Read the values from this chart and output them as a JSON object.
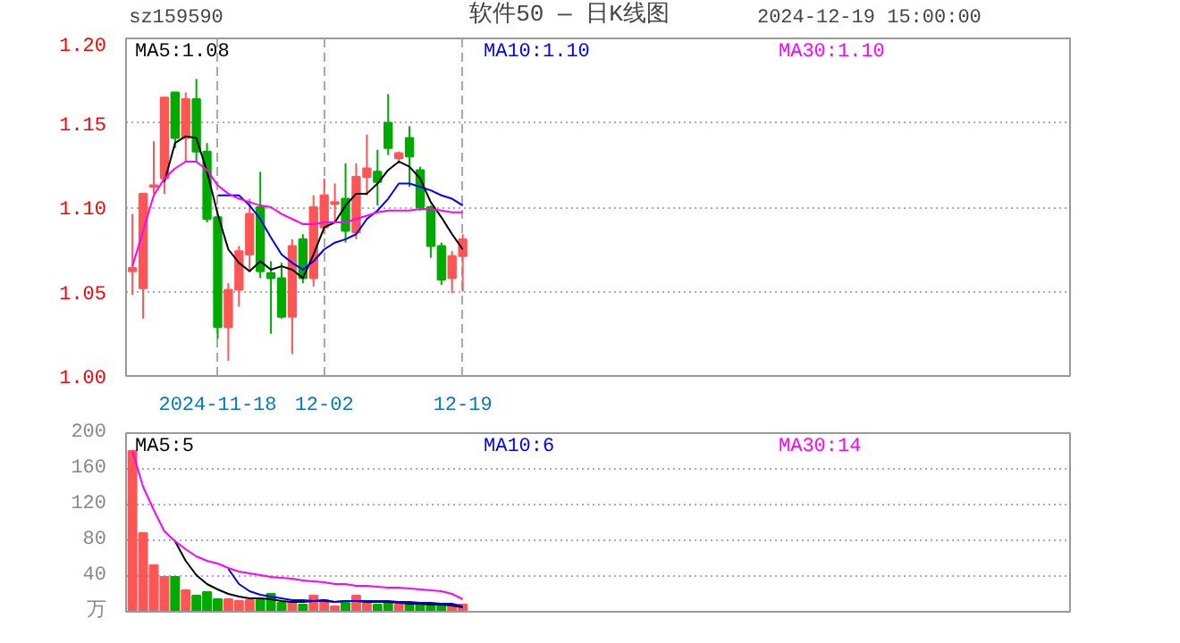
{
  "chart_data": [
    {
      "type": "candlestick",
      "title": "软件50 — 日K线图",
      "annotations": [
        "sz159590",
        "2024-12-19 15:00:00"
      ],
      "categories": [
        null,
        null,
        null,
        null,
        null,
        null,
        null,
        null,
        "2024-11-18",
        null,
        null,
        null,
        null,
        null,
        null,
        null,
        null,
        null,
        "12-02",
        null,
        null,
        null,
        null,
        null,
        null,
        null,
        null,
        null,
        null,
        null,
        null,
        "12-19"
      ],
      "ohlc": [
        [
          1.062,
          1.096,
          1.048,
          1.064
        ],
        [
          1.052,
          1.108,
          1.034,
          1.108
        ],
        [
          1.112,
          1.139,
          1.108,
          1.113
        ],
        [
          1.117,
          1.165,
          1.108,
          1.165
        ],
        [
          1.168,
          1.168,
          1.135,
          1.141
        ],
        [
          1.141,
          1.168,
          1.127,
          1.164
        ],
        [
          1.164,
          1.176,
          1.127,
          1.133
        ],
        [
          1.133,
          1.138,
          1.091,
          1.093
        ],
        [
          1.094,
          1.094,
          1.022,
          1.029
        ],
        [
          1.029,
          1.055,
          1.009,
          1.051
        ],
        [
          1.051,
          1.077,
          1.041,
          1.074
        ],
        [
          1.072,
          1.105,
          1.062,
          1.096
        ],
        [
          1.1,
          1.121,
          1.058,
          1.062
        ],
        [
          1.061,
          1.068,
          1.025,
          1.058
        ],
        [
          1.058,
          1.067,
          1.034,
          1.035
        ],
        [
          1.035,
          1.081,
          1.013,
          1.077
        ],
        [
          1.081,
          1.084,
          1.055,
          1.058
        ],
        [
          1.058,
          1.107,
          1.053,
          1.1
        ],
        [
          1.088,
          1.117,
          1.084,
          1.107
        ],
        [
          1.102,
          1.114,
          1.091,
          1.103
        ],
        [
          1.105,
          1.126,
          1.079,
          1.086
        ],
        [
          1.085,
          1.126,
          1.081,
          1.118
        ],
        [
          1.118,
          1.143,
          1.107,
          1.123
        ],
        [
          1.121,
          1.134,
          1.101,
          1.115
        ],
        [
          1.15,
          1.167,
          1.131,
          1.135
        ],
        [
          1.129,
          1.133,
          1.126,
          1.132
        ],
        [
          1.141,
          1.148,
          1.112,
          1.13
        ],
        [
          1.122,
          1.124,
          1.098,
          1.1
        ],
        [
          1.1,
          1.101,
          1.07,
          1.077
        ],
        [
          1.077,
          1.079,
          1.054,
          1.057
        ],
        [
          1.058,
          1.074,
          1.049,
          1.071
        ],
        [
          1.071,
          1.084,
          1.05,
          1.081
        ]
      ],
      "colors": [
        "#ff5555",
        "#ff5555",
        "#ff5555",
        "#ff5555",
        "#00aa00",
        "#ff5555",
        "#00aa00",
        "#00aa00",
        "#00aa00",
        "#ff5555",
        "#ff5555",
        "#ff5555",
        "#00aa00",
        "#00aa00",
        "#00aa00",
        "#ff5555",
        "#00aa00",
        "#ff5555",
        "#ff5555",
        "#ff5555",
        "#00aa00",
        "#ff5555",
        "#ff5555",
        "#00aa00",
        "#00aa00",
        "#ff5555",
        "#00aa00",
        "#00aa00",
        "#00aa00",
        "#00aa00",
        "#ff5555",
        "#ff5555"
      ],
      "series": [
        {
          "type": "line",
          "name": "MA5:1.08",
          "color": "#000000",
          "values": [
            null,
            null,
            null,
            1.115,
            1.138,
            1.142,
            1.141,
            1.121,
            1.096,
            1.075,
            1.067,
            1.062,
            1.068,
            1.063,
            1.065,
            1.063,
            1.058,
            1.072,
            1.088,
            1.091,
            1.101,
            1.108,
            1.108,
            1.114,
            1.122,
            1.127,
            1.124,
            1.117,
            1.103,
            1.094,
            1.084,
            1.075
          ]
        },
        {
          "type": "line",
          "name": "MA10:1.10",
          "color": "#0000ff",
          "values": [
            null,
            null,
            null,
            null,
            null,
            null,
            null,
            null,
            1.107,
            1.107,
            1.107,
            1.101,
            1.093,
            1.082,
            1.072,
            1.067,
            1.063,
            1.068,
            1.075,
            1.079,
            1.081,
            1.084,
            1.093,
            1.098,
            1.105,
            1.114,
            1.114,
            1.112,
            1.11,
            1.107,
            1.105,
            1.101
          ]
        },
        {
          "type": "line",
          "name": "MA30:1.10",
          "color": "#ff00ff",
          "values": [
            1.065,
            1.086,
            1.107,
            1.117,
            1.123,
            1.127,
            1.127,
            1.122,
            1.113,
            1.108,
            1.105,
            1.103,
            1.101,
            1.1,
            1.096,
            1.093,
            1.09,
            1.09,
            1.091,
            1.091,
            1.091,
            1.093,
            1.095,
            1.097,
            1.098,
            1.098,
            1.098,
            1.099,
            1.099,
            1.098,
            1.097,
            1.097
          ]
        }
      ],
      "ylim": [
        1.0,
        1.2
      ],
      "yticks": [
        {
          "value": 1.0,
          "label": "1.00"
        },
        {
          "value": 1.05,
          "label": "1.05"
        },
        {
          "value": 1.1,
          "label": "1.10"
        },
        {
          "value": 1.15,
          "label": "1.15"
        },
        {
          "value": 1.2,
          "label": "1.20"
        }
      ],
      "grid": true,
      "legend": "top"
    },
    {
      "type": "bar",
      "categories": [
        null,
        null,
        null,
        null,
        null,
        null,
        null,
        null,
        null,
        null,
        null,
        null,
        null,
        null,
        null,
        null,
        null,
        null,
        null,
        null,
        null,
        null,
        null,
        null,
        null,
        null,
        null,
        null,
        null,
        null,
        null,
        null
      ],
      "series": [
        {
          "type": "bar",
          "values": [
            180,
            88,
            52,
            39,
            39,
            24,
            18,
            22,
            14,
            14,
            12,
            13,
            13,
            20,
            10,
            10,
            8,
            18,
            13,
            6,
            10,
            18,
            10,
            8,
            10,
            8,
            8,
            8,
            8,
            8,
            6,
            8
          ],
          "colors": [
            "#ff5555",
            "#ff5555",
            "#ff5555",
            "#ff5555",
            "#00aa00",
            "#ff5555",
            "#00aa00",
            "#00aa00",
            "#00aa00",
            "#ff5555",
            "#ff5555",
            "#ff5555",
            "#00aa00",
            "#00aa00",
            "#00aa00",
            "#ff5555",
            "#00aa00",
            "#ff5555",
            "#ff5555",
            "#ff5555",
            "#00aa00",
            "#ff5555",
            "#ff5555",
            "#00aa00",
            "#00aa00",
            "#ff5555",
            "#00aa00",
            "#00aa00",
            "#00aa00",
            "#00aa00",
            "#ff5555",
            "#ff5555"
          ]
        },
        {
          "type": "line",
          "name": "MA5:5",
          "color": "#000000",
          "values": [
            null,
            null,
            null,
            null,
            79,
            57,
            41,
            31,
            25,
            20,
            17,
            15,
            15,
            14,
            12,
            11,
            11,
            12,
            13,
            11,
            12,
            12,
            11,
            11,
            11,
            10,
            9,
            9,
            8,
            8,
            7,
            5
          ]
        },
        {
          "type": "line",
          "name": "MA10:6",
          "color": "#0000ff",
          "values": [
            null,
            null,
            null,
            null,
            null,
            null,
            null,
            null,
            null,
            48,
            31,
            23,
            19,
            17,
            15,
            13,
            13,
            12,
            12,
            11,
            12,
            12,
            12,
            12,
            12,
            11,
            11,
            10,
            10,
            9,
            9,
            6
          ]
        },
        {
          "type": "line",
          "name": "MA30:14",
          "color": "#ff00ff",
          "values": [
            180,
            140,
            114,
            90,
            79,
            70,
            62,
            57,
            54,
            49,
            45,
            43,
            41,
            39,
            38,
            37,
            35,
            34,
            33,
            31,
            31,
            29,
            29,
            28,
            27,
            27,
            26,
            25,
            24,
            23,
            20,
            14
          ]
        }
      ],
      "ylim": [
        0,
        200
      ],
      "yticks": [
        {
          "value": 0,
          "label": "万"
        },
        40,
        80,
        120,
        160,
        200
      ],
      "tick_labels": "y",
      "grid": true,
      "legend": "top"
    }
  ]
}
